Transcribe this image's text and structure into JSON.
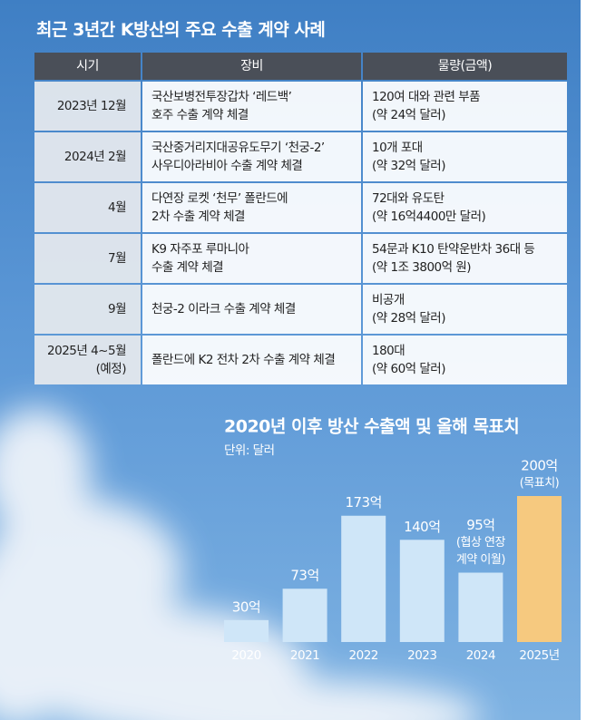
{
  "table": {
    "title": "최근 3년간 K방산의 주요 수출 계약 사례",
    "header": [
      "시기",
      "장비",
      "물량(금액)"
    ],
    "rows": [
      [
        [
          "2023년 12월"
        ],
        [
          "국산보병전투장갑차 ‘레드백’",
          "호주 수출 계약 체결"
        ],
        [
          "120여 대와 관련 부품",
          "(약 24억 달러)"
        ]
      ],
      [
        [
          "2024년  2월"
        ],
        [
          "국산중거리지대공유도무기 ‘천궁-2’",
          "사우디아라비아 수출 계약 체결"
        ],
        [
          "10개 포대",
          "(약 32억 달러)"
        ]
      ],
      [
        [
          "4월"
        ],
        [
          "다연장 로켓 ‘천무’ 폴란드에",
          "2차 수출 계약 체결"
        ],
        [
          "72대와 유도탄",
          "(약 16억4400만 달러)"
        ]
      ],
      [
        [
          "7월"
        ],
        [
          "K9 자주포 루마니아",
          "수출 계약 체결"
        ],
        [
          "54문과 K10 탄약운반차 36대 등",
          "(약 1조 3800억 원)"
        ]
      ],
      [
        [
          "9월"
        ],
        [
          "천궁-2 이라크 수출 계약 체결"
        ],
        [
          "비공개",
          "(약 28억 달러)"
        ]
      ],
      [
        [
          "2025년 4~5월",
          "(예정)"
        ],
        [
          "폴란드에 K2 전차 2차 수출 계약 체결"
        ],
        [
          "180대",
          "(약 60억 달러)"
        ]
      ]
    ]
  },
  "chart_data": {
    "type": "bar",
    "title": "2020년 이후 방산 수출액 및 올해 목표치",
    "subtitle": "단위: 달러",
    "categories": [
      "2020",
      "2021",
      "2022",
      "2023",
      "2024",
      "2025년"
    ],
    "values": [
      30,
      73,
      173,
      140,
      95,
      200
    ],
    "value_labels": [
      "30억",
      "73억",
      "173억",
      "140억",
      "95억",
      "200억"
    ],
    "value_notes": [
      null,
      null,
      null,
      null,
      [
        "(협상 연장",
        "계약 이월)"
      ],
      [
        "(목표치)"
      ]
    ],
    "colors": [
      "#cfe6f8",
      "#cfe6f8",
      "#cfe6f8",
      "#cfe6f8",
      "#cfe6f8",
      "#f6c97f"
    ]
  }
}
